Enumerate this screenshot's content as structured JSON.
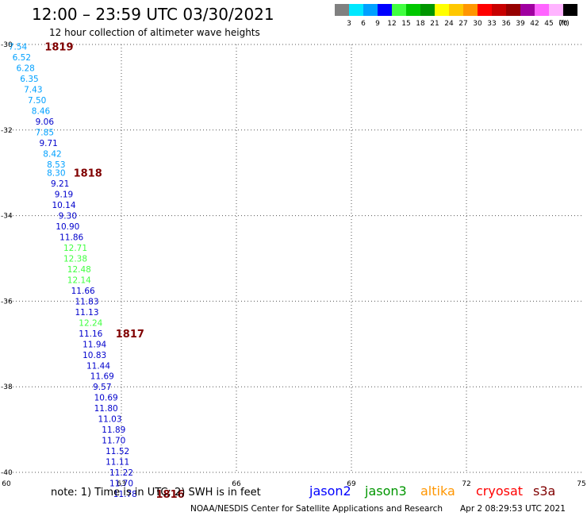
{
  "header": {
    "title": "12:00 – 23:59 UTC 03/30/2021",
    "subtitle": "12 hour collection of altimeter wave heights"
  },
  "scale": {
    "unit": "(ft)",
    "bins": [
      {
        "color": "#808080",
        "label": "3"
      },
      {
        "color": "#00e8ff",
        "label": "6"
      },
      {
        "color": "#00a0ff",
        "label": "9"
      },
      {
        "color": "#0000ff",
        "label": "12"
      },
      {
        "color": "#40ff40",
        "label": "15"
      },
      {
        "color": "#00c800",
        "label": "18"
      },
      {
        "color": "#009600",
        "label": "21"
      },
      {
        "color": "#ffff00",
        "label": "24"
      },
      {
        "color": "#ffc800",
        "label": "27"
      },
      {
        "color": "#ff9600",
        "label": "30"
      },
      {
        "color": "#ff0000",
        "label": "33"
      },
      {
        "color": "#c80000",
        "label": "36"
      },
      {
        "color": "#960000",
        "label": "39"
      },
      {
        "color": "#a000a0",
        "label": "42"
      },
      {
        "color": "#ff64ff",
        "label": "45"
      },
      {
        "color": "#ffb4ff",
        "label": "70"
      },
      {
        "color": "#000000",
        "label": ""
      }
    ]
  },
  "chart_data": {
    "type": "scatter",
    "x_ticks": [
      "60",
      "63",
      "66",
      "69",
      "72",
      "75"
    ],
    "y_ticks": [
      "-30",
      "-32",
      "-34",
      "-36",
      "-38",
      "-40"
    ],
    "xlim": [
      60,
      75
    ],
    "ylim": [
      -40,
      -30
    ],
    "grid": "dotted",
    "points": [
      {
        "lon": 60.3,
        "lat": -30.05,
        "v": "7.54",
        "c": "#00a0ff"
      },
      {
        "lon": 60.4,
        "lat": -30.3,
        "v": "6.52",
        "c": "#00a0ff"
      },
      {
        "lon": 60.5,
        "lat": -30.55,
        "v": "6.28",
        "c": "#00a0ff"
      },
      {
        "lon": 60.6,
        "lat": -30.8,
        "v": "6.35",
        "c": "#00a0ff"
      },
      {
        "lon": 60.7,
        "lat": -31.05,
        "v": "7.43",
        "c": "#00a0ff"
      },
      {
        "lon": 60.8,
        "lat": -31.3,
        "v": "7.50",
        "c": "#00a0ff"
      },
      {
        "lon": 60.9,
        "lat": -31.55,
        "v": "8.46",
        "c": "#00a0ff"
      },
      {
        "lon": 61.0,
        "lat": -31.8,
        "v": "9.06",
        "c": "#0000cc"
      },
      {
        "lon": 61.0,
        "lat": -32.05,
        "v": "7.85",
        "c": "#00a0ff"
      },
      {
        "lon": 61.1,
        "lat": -32.3,
        "v": "9.71",
        "c": "#0000cc"
      },
      {
        "lon": 61.2,
        "lat": -32.55,
        "v": "8.42",
        "c": "#00a0ff"
      },
      {
        "lon": 61.3,
        "lat": -32.8,
        "v": "8.53",
        "c": "#00a0ff"
      },
      {
        "lon": 61.3,
        "lat": -33.0,
        "v": "8.30",
        "c": "#00a0ff"
      },
      {
        "lon": 61.4,
        "lat": -33.25,
        "v": "9.21",
        "c": "#0000cc"
      },
      {
        "lon": 61.5,
        "lat": -33.5,
        "v": "9.19",
        "c": "#0000cc"
      },
      {
        "lon": 61.5,
        "lat": -33.75,
        "v": "10.14",
        "c": "#0000cc"
      },
      {
        "lon": 61.6,
        "lat": -34.0,
        "v": "9.30",
        "c": "#0000cc"
      },
      {
        "lon": 61.6,
        "lat": -34.25,
        "v": "10.90",
        "c": "#0000cc"
      },
      {
        "lon": 61.7,
        "lat": -34.5,
        "v": "11.86",
        "c": "#0000cc"
      },
      {
        "lon": 61.8,
        "lat": -34.75,
        "v": "12.71",
        "c": "#40ff40"
      },
      {
        "lon": 61.8,
        "lat": -35.0,
        "v": "12.38",
        "c": "#40ff40"
      },
      {
        "lon": 61.9,
        "lat": -35.25,
        "v": "12.48",
        "c": "#40ff40"
      },
      {
        "lon": 61.9,
        "lat": -35.5,
        "v": "12.14",
        "c": "#40ff40"
      },
      {
        "lon": 62.0,
        "lat": -35.75,
        "v": "11.66",
        "c": "#0000cc"
      },
      {
        "lon": 62.1,
        "lat": -36.0,
        "v": "11.83",
        "c": "#0000cc"
      },
      {
        "lon": 62.1,
        "lat": -36.25,
        "v": "11.13",
        "c": "#0000cc"
      },
      {
        "lon": 62.2,
        "lat": -36.5,
        "v": "12.24",
        "c": "#40ff40"
      },
      {
        "lon": 62.2,
        "lat": -36.75,
        "v": "11.16",
        "c": "#0000cc"
      },
      {
        "lon": 62.3,
        "lat": -37.0,
        "v": "11.94",
        "c": "#0000cc"
      },
      {
        "lon": 62.3,
        "lat": -37.25,
        "v": "10.83",
        "c": "#0000cc"
      },
      {
        "lon": 62.4,
        "lat": -37.5,
        "v": "11.44",
        "c": "#0000cc"
      },
      {
        "lon": 62.5,
        "lat": -37.75,
        "v": "11.69",
        "c": "#0000cc"
      },
      {
        "lon": 62.5,
        "lat": -38.0,
        "v": "9.57",
        "c": "#0000cc"
      },
      {
        "lon": 62.6,
        "lat": -38.25,
        "v": "10.69",
        "c": "#0000cc"
      },
      {
        "lon": 62.6,
        "lat": -38.5,
        "v": "11.80",
        "c": "#0000cc"
      },
      {
        "lon": 62.7,
        "lat": -38.75,
        "v": "11.03",
        "c": "#0000cc"
      },
      {
        "lon": 62.8,
        "lat": -39.0,
        "v": "11.89",
        "c": "#0000cc"
      },
      {
        "lon": 62.8,
        "lat": -39.25,
        "v": "11.70",
        "c": "#0000cc"
      },
      {
        "lon": 62.9,
        "lat": -39.5,
        "v": "11.52",
        "c": "#0000cc"
      },
      {
        "lon": 62.9,
        "lat": -39.75,
        "v": "11.11",
        "c": "#0000cc"
      },
      {
        "lon": 63.0,
        "lat": -40.0,
        "v": "11.22",
        "c": "#0000cc"
      },
      {
        "lon": 63.0,
        "lat": -40.25,
        "v": "11.70",
        "c": "#0000cc"
      },
      {
        "lon": 63.1,
        "lat": -40.5,
        "v": "11.78",
        "c": "#0000cc"
      }
    ],
    "pass_labels": [
      {
        "text": "1819",
        "lon": 61.0,
        "lat": -30.05
      },
      {
        "text": "1818",
        "lon": 61.75,
        "lat": -33.0
      },
      {
        "text": "1817",
        "lon": 62.85,
        "lat": -36.75
      },
      {
        "text": "1816",
        "lon": 63.9,
        "lat": -40.5
      }
    ]
  },
  "footer": {
    "note": "note:  1) Time is in UTC; 2) SWH is in feet",
    "satellites": [
      {
        "name": "jason2",
        "color": "#0000ff"
      },
      {
        "name": "jason3",
        "color": "#009600"
      },
      {
        "name": "altika",
        "color": "#ff9600"
      },
      {
        "name": "cryosat",
        "color": "#ff0000"
      },
      {
        "name": "s3a",
        "color": "#800000"
      }
    ],
    "credit": "NOAA/NESDIS Center for Satellite Applications and Research",
    "timestamp": "Apr  2 08:29:53 UTC 2021"
  }
}
